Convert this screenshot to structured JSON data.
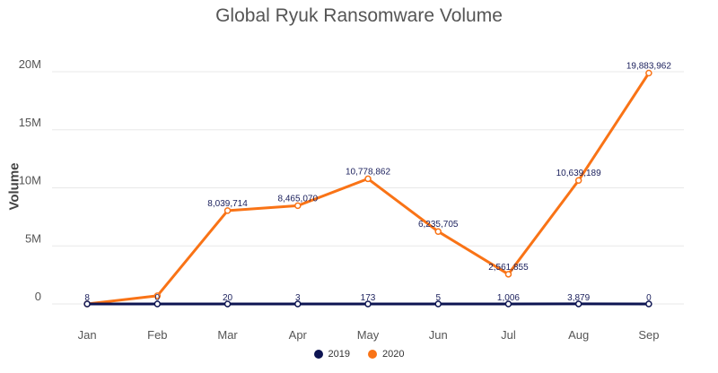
{
  "colors": {
    "series_2019": "#0d1452",
    "series_2020": "#f97316",
    "grid": "#e8e8e8"
  },
  "chart_data": {
    "type": "line",
    "title": "Global Ryuk Ransomware Volume",
    "xlabel": "",
    "ylabel": "Volume",
    "categories": [
      "Jan",
      "Feb",
      "Mar",
      "Apr",
      "May",
      "Jun",
      "Jul",
      "Aug",
      "Sep"
    ],
    "y_ticks": [
      {
        "value": 0,
        "label": "0"
      },
      {
        "value": 5000000,
        "label": "5M"
      },
      {
        "value": 10000000,
        "label": "10M"
      },
      {
        "value": 15000000,
        "label": "15M"
      },
      {
        "value": 20000000,
        "label": "20M"
      }
    ],
    "ylim": [
      0,
      20000000
    ],
    "grid": true,
    "legend": "bottom",
    "series": [
      {
        "name": "2019",
        "values": [
          8,
          0,
          20,
          3,
          173,
          5,
          1006,
          3879,
          0
        ],
        "labels": [
          "8",
          "0",
          "20",
          "3",
          "173",
          "5",
          "1,006",
          "3,879",
          "0"
        ]
      },
      {
        "name": "2020",
        "values": [
          0,
          700000,
          8039714,
          8465070,
          10778862,
          6235705,
          2561855,
          10639189,
          19883962
        ],
        "labels": [
          "",
          "",
          "8,039,714",
          "8,465,070",
          "10,778,862",
          "6,235,705",
          "2,561,855",
          "10,639,189",
          "19,883,962"
        ]
      }
    ]
  }
}
